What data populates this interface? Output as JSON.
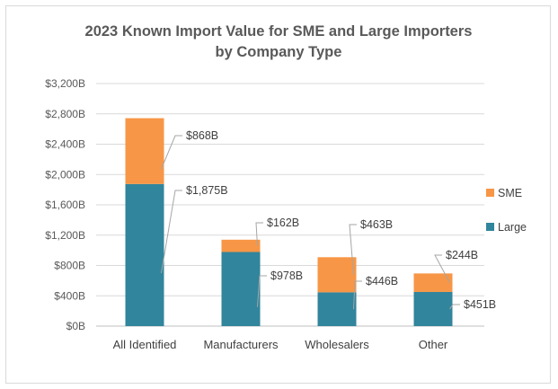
{
  "chart_data": {
    "type": "bar",
    "stacked": true,
    "title": "2023 Known Import Value for SME and Large Importers by Company Type",
    "title_lines": [
      "2023 Known Import Value for SME and Large Importers",
      "by Company Type"
    ],
    "categories": [
      "All Identified",
      "Manufacturers",
      "Wholesalers",
      "Other"
    ],
    "series": [
      {
        "name": "Large",
        "color": "#31859c",
        "values": [
          1875,
          978,
          446,
          451
        ],
        "labels": [
          "$1,875B",
          "$978B",
          "$446B",
          "$451B"
        ]
      },
      {
        "name": "SME",
        "color": "#f79646",
        "values": [
          868,
          162,
          463,
          244
        ],
        "labels": [
          "$868B",
          "$162B",
          "$463B",
          "$244B"
        ]
      }
    ],
    "ylim": [
      0,
      3200
    ],
    "yticks": [
      0,
      400,
      800,
      1200,
      1600,
      2000,
      2400,
      2800,
      3200
    ],
    "ytick_labels": [
      "$0B",
      "$400B",
      "$800B",
      "$1,200B",
      "$1,600B",
      "$2,000B",
      "$2,400B",
      "$2,800B",
      "$3,200B"
    ],
    "legend": [
      "SME",
      "Large"
    ],
    "legend_position": "right",
    "grid": true,
    "xlabel": "",
    "ylabel": ""
  }
}
